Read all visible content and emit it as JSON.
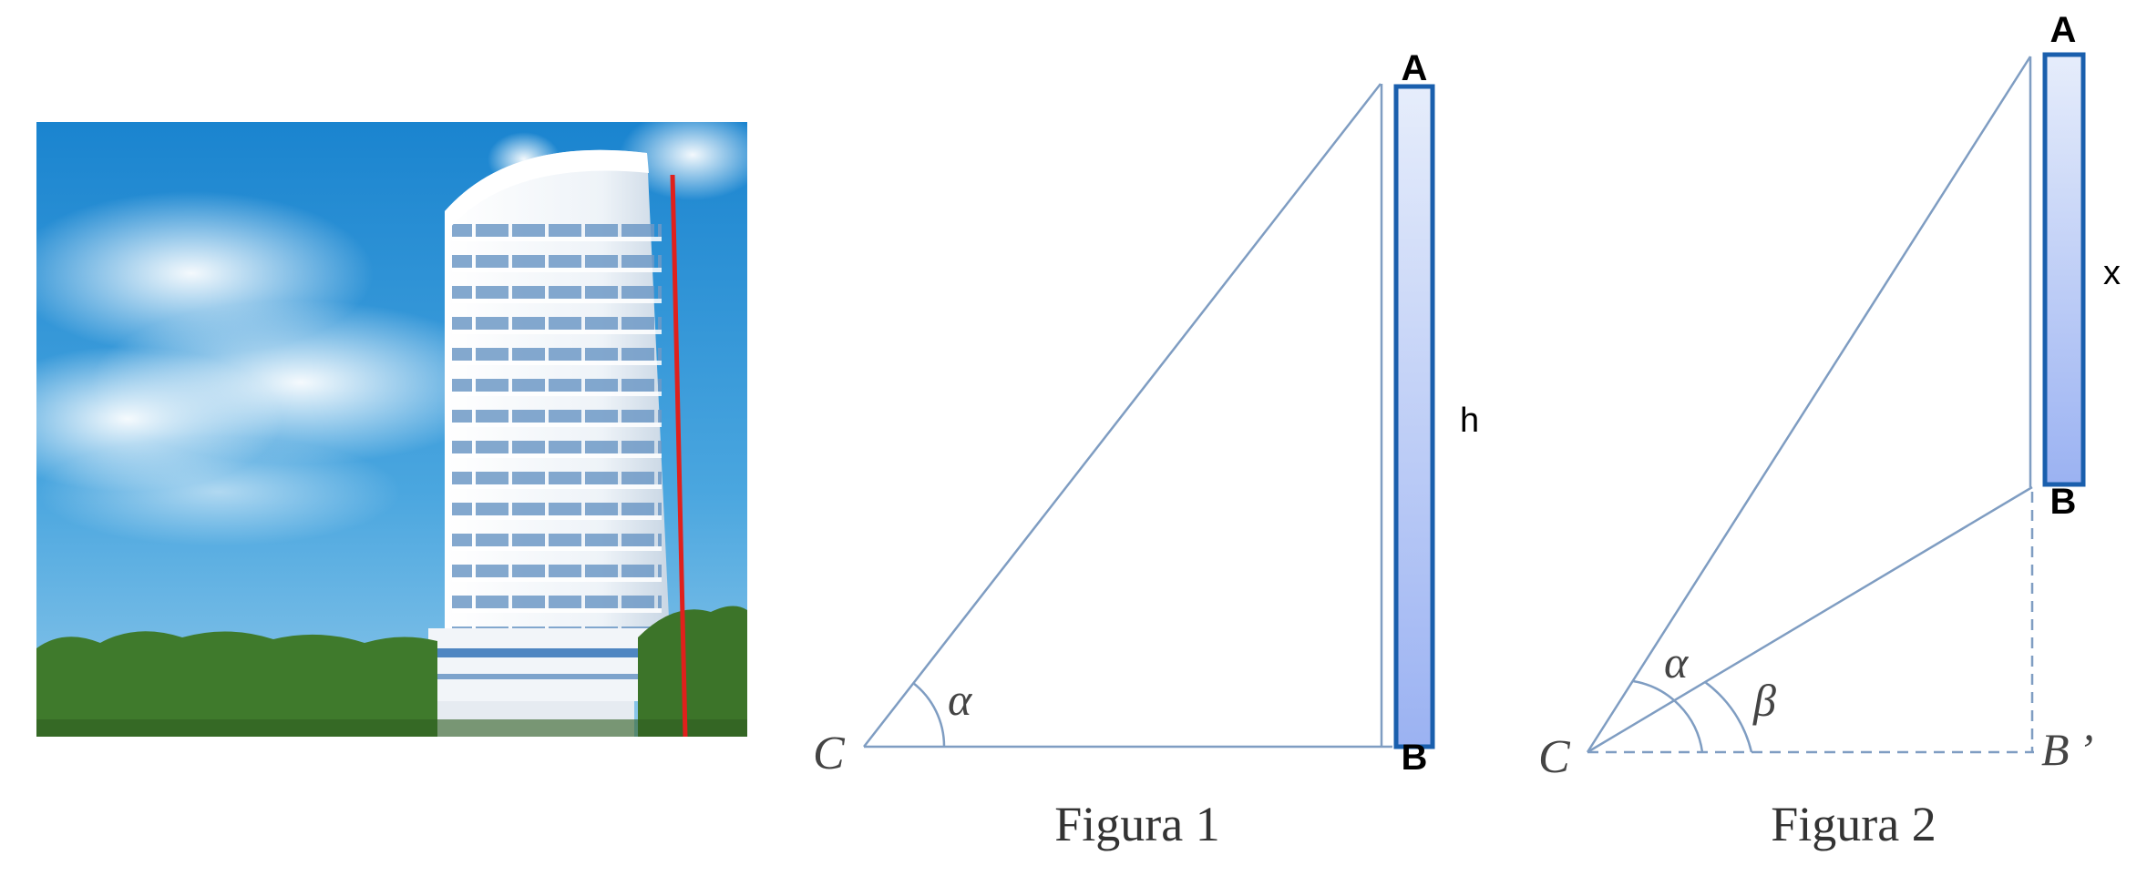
{
  "photo": {
    "subject": "high-rise-building",
    "colors": {
      "sky": "#2f93d4",
      "trees": "#3f7a2c",
      "building": "#f4f7fb",
      "measure_line": "#e0201c"
    }
  },
  "figure1": {
    "caption": "Figura 1",
    "vertex_c": "C",
    "vertex_a": "A",
    "vertex_b": "B",
    "angle": "α",
    "height_label": "h"
  },
  "figure2": {
    "caption": "Figura 2",
    "vertex_c": "C",
    "vertex_a": "A",
    "vertex_b": "B",
    "vertex_b_prime": "B ’",
    "angle_alpha": "α",
    "angle_beta": "β",
    "segment_label": "x"
  },
  "colors": {
    "line": "#7f9dc2",
    "bar_stroke": "#1a5fad",
    "bar_top": "#e6edfb",
    "bar_bottom": "#9bb2f2"
  }
}
